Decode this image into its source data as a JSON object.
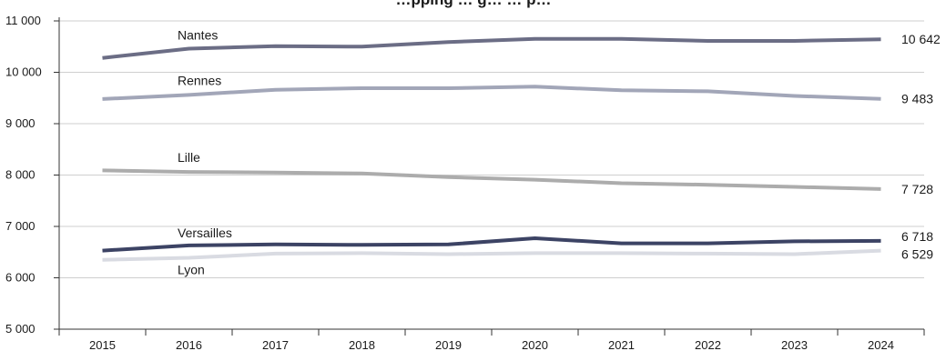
{
  "chart_data": {
    "type": "line",
    "title": "…pping … g…    … p…",
    "x": [
      "2015",
      "2016",
      "2017",
      "2018",
      "2019",
      "2020",
      "2021",
      "2022",
      "2023",
      "2024"
    ],
    "yticks": [
      "11 000",
      "10 000",
      "9 000",
      "8 000",
      "7 000",
      "6 000",
      "5 000"
    ],
    "ylim": [
      5000,
      11000
    ],
    "grid": true,
    "series": [
      {
        "name": "Nantes",
        "color": "#6b6d85",
        "values": [
          10280,
          10460,
          10510,
          10500,
          10590,
          10650,
          10650,
          10610,
          10610,
          10642
        ],
        "end_label": "10 642"
      },
      {
        "name": "Rennes",
        "color": "#a2a6b8",
        "values": [
          9480,
          9560,
          9660,
          9690,
          9690,
          9720,
          9650,
          9630,
          9540,
          9483
        ],
        "end_label": "9 483"
      },
      {
        "name": "Lille",
        "color": "#acacac",
        "values": [
          8090,
          8060,
          8050,
          8030,
          7960,
          7910,
          7840,
          7810,
          7770,
          7728
        ],
        "end_label": "7 728"
      },
      {
        "name": "Versailles",
        "color": "#3c4364",
        "values": [
          6530,
          6630,
          6650,
          6640,
          6650,
          6770,
          6670,
          6670,
          6710,
          6718
        ],
        "end_label": "6 718"
      },
      {
        "name": "Lyon",
        "color": "#d9dbe2",
        "values": [
          6350,
          6390,
          6470,
          6480,
          6460,
          6480,
          6480,
          6470,
          6460,
          6529
        ],
        "end_label": "6 529"
      }
    ]
  }
}
